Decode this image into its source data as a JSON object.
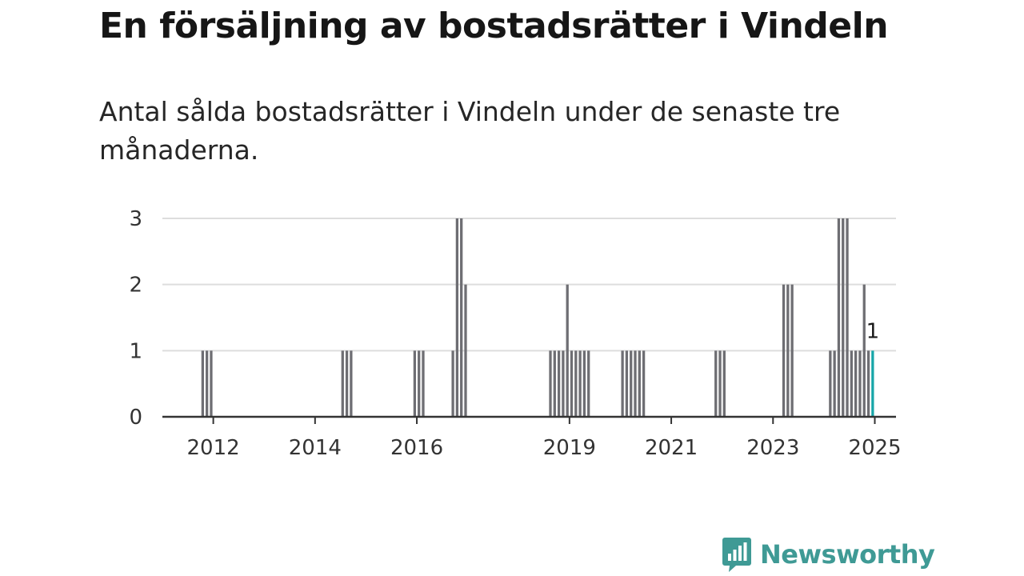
{
  "title": "En försäljning av bostadsrätter i Vindeln",
  "subtitle": "Antal sålda bostadsrätter i Vindeln under de senaste tre månaderna.",
  "brand": "Newsworthy",
  "colors": {
    "bar": "#6e6e73",
    "highlight": "#17a6a8",
    "grid": "#dddddd",
    "axis": "#333333",
    "brand": "#3f9a95"
  },
  "chart_data": {
    "type": "bar",
    "xlabel": "",
    "ylabel": "",
    "ylim": [
      0,
      3
    ],
    "yticks": [
      0,
      1,
      2,
      3
    ],
    "xlim": [
      "2011-07",
      "2025-12"
    ],
    "xticks": [
      "2012",
      "2014",
      "2016",
      "2019",
      "2021",
      "2023",
      "2025"
    ],
    "grid": true,
    "highlight_last": true,
    "last_value_label": "1",
    "series": [
      {
        "x": [
          "2012-04",
          "2012-05",
          "2012-06",
          "2015-01",
          "2015-02",
          "2015-03",
          "2016-06",
          "2016-07",
          "2016-08",
          "2017-03",
          "2017-04",
          "2017-05",
          "2017-06",
          "2019-02",
          "2019-03",
          "2019-04",
          "2019-05",
          "2019-06",
          "2019-07",
          "2019-08",
          "2019-09",
          "2019-10",
          "2019-11",
          "2020-07",
          "2020-08",
          "2020-09",
          "2020-10",
          "2020-11",
          "2020-12",
          "2022-05",
          "2022-06",
          "2022-07",
          "2023-09",
          "2023-10",
          "2023-11",
          "2024-08",
          "2024-09",
          "2024-10",
          "2024-11",
          "2024-12",
          "2025-01",
          "2025-02",
          "2025-03",
          "2025-04",
          "2025-05",
          "2025-06"
        ],
        "values": [
          1,
          1,
          1,
          1,
          1,
          1,
          1,
          1,
          1,
          1,
          3,
          3,
          2,
          1,
          1,
          1,
          1,
          2,
          1,
          1,
          1,
          1,
          1,
          1,
          1,
          1,
          1,
          1,
          1,
          1,
          1,
          1,
          2,
          2,
          2,
          1,
          1,
          3,
          3,
          3,
          1,
          1,
          1,
          2,
          1,
          1
        ]
      }
    ]
  }
}
